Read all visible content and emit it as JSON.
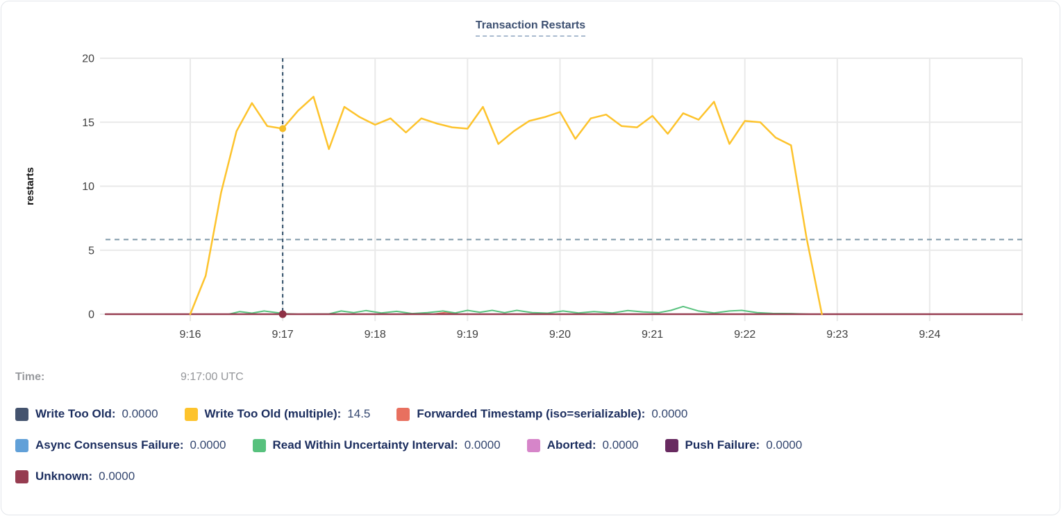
{
  "title": "Transaction Restarts",
  "hover": {
    "time_label": "Time:",
    "time_value": "9:17:00 UTC"
  },
  "chart_data": {
    "type": "line",
    "title": "Transaction Restarts",
    "ylabel": "restarts",
    "y_domain": [
      0,
      20
    ],
    "y_ticks": [
      0,
      5,
      10,
      15,
      20
    ],
    "x_domain": [
      5,
      600
    ],
    "x_ticks": [
      {
        "t": 60,
        "label": "9:16"
      },
      {
        "t": 120,
        "label": "9:17"
      },
      {
        "t": 180,
        "label": "9:18"
      },
      {
        "t": 240,
        "label": "9:19"
      },
      {
        "t": 300,
        "label": "9:20"
      },
      {
        "t": 360,
        "label": "9:21"
      },
      {
        "t": 420,
        "label": "9:22"
      },
      {
        "t": 480,
        "label": "9:23"
      },
      {
        "t": 540,
        "label": "9:24"
      },
      {
        "t": 600,
        "label": ""
      }
    ],
    "grid": true,
    "threshold_line": 5.83,
    "threshold_color": "#7e98a8",
    "crosshair_t": 120,
    "crosshair_color": "#2f4d68",
    "hover_dots": [
      {
        "series": "Write Too Old (multiple)",
        "t": 120,
        "v": 14.5,
        "r": 5,
        "color": "#f5bd27"
      },
      {
        "series": "Unknown",
        "t": 120,
        "v": 0,
        "r": 5.5,
        "color": "#8e3145"
      }
    ],
    "legend_rows": [
      [
        0,
        1,
        2
      ],
      [
        3,
        4,
        5,
        6
      ],
      [
        7
      ]
    ],
    "series": [
      {
        "id": "write-too-old",
        "name": "Write Too Old",
        "legend_value": "0.0000",
        "color": "#44536e",
        "z": 1,
        "width": 2,
        "points": [
          [
            5,
            0
          ],
          [
            600,
            0
          ]
        ]
      },
      {
        "id": "write-too-old-multiple",
        "name": "Write Too Old (multiple)",
        "legend_value": "14.5",
        "color": "#fdc32c",
        "z": 8,
        "width": 2.5,
        "points": [
          [
            60,
            0
          ],
          [
            70,
            3
          ],
          [
            80,
            9.5
          ],
          [
            90,
            14.3
          ],
          [
            100,
            16.5
          ],
          [
            110,
            14.7
          ],
          [
            120,
            14.5
          ],
          [
            130,
            15.9
          ],
          [
            140,
            17.0
          ],
          [
            150,
            12.9
          ],
          [
            160,
            16.2
          ],
          [
            170,
            15.4
          ],
          [
            180,
            14.8
          ],
          [
            190,
            15.3
          ],
          [
            200,
            14.2
          ],
          [
            210,
            15.3
          ],
          [
            220,
            14.9
          ],
          [
            230,
            14.6
          ],
          [
            240,
            14.5
          ],
          [
            250,
            16.2
          ],
          [
            260,
            13.3
          ],
          [
            270,
            14.3
          ],
          [
            280,
            15.1
          ],
          [
            290,
            15.4
          ],
          [
            300,
            15.8
          ],
          [
            310,
            13.7
          ],
          [
            320,
            15.3
          ],
          [
            330,
            15.6
          ],
          [
            340,
            14.7
          ],
          [
            350,
            14.6
          ],
          [
            360,
            15.5
          ],
          [
            370,
            14.1
          ],
          [
            380,
            15.7
          ],
          [
            390,
            15.2
          ],
          [
            400,
            16.6
          ],
          [
            410,
            13.3
          ],
          [
            420,
            15.1
          ],
          [
            430,
            15.0
          ],
          [
            440,
            13.8
          ],
          [
            450,
            13.2
          ],
          [
            460,
            6.0
          ],
          [
            470,
            0
          ]
        ]
      },
      {
        "id": "forwarded-timestamp",
        "name": "Forwarded Timestamp (iso=serializable)",
        "legend_value": "0.0000",
        "color": "#e8705f",
        "z": 2,
        "width": 2,
        "points": [
          [
            5,
            0
          ],
          [
            218,
            0
          ],
          [
            226,
            0.14
          ],
          [
            234,
            0
          ],
          [
            600,
            0
          ]
        ]
      },
      {
        "id": "async-consensus-failure",
        "name": "Async Consensus Failure",
        "legend_value": "0.0000",
        "color": "#61a0d8",
        "z": 3,
        "width": 2,
        "points": [
          [
            5,
            0
          ],
          [
            600,
            0
          ]
        ]
      },
      {
        "id": "read-within-uncertainty-interval",
        "name": "Read Within Uncertainty Interval",
        "legend_value": "0.0000",
        "color": "#57c17d",
        "z": 6,
        "width": 2,
        "points": [
          [
            85,
            0
          ],
          [
            92,
            0.2
          ],
          [
            100,
            0.08
          ],
          [
            108,
            0.25
          ],
          [
            116,
            0.12
          ],
          [
            122,
            0.04
          ],
          [
            130,
            0
          ],
          [
            150,
            0.02
          ],
          [
            158,
            0.25
          ],
          [
            166,
            0.12
          ],
          [
            174,
            0.28
          ],
          [
            184,
            0.1
          ],
          [
            194,
            0.22
          ],
          [
            204,
            0.05
          ],
          [
            214,
            0.12
          ],
          [
            224,
            0.25
          ],
          [
            232,
            0.1
          ],
          [
            240,
            0.3
          ],
          [
            248,
            0.15
          ],
          [
            256,
            0.3
          ],
          [
            264,
            0.12
          ],
          [
            272,
            0.3
          ],
          [
            282,
            0.12
          ],
          [
            292,
            0.08
          ],
          [
            302,
            0.25
          ],
          [
            312,
            0.1
          ],
          [
            322,
            0.2
          ],
          [
            334,
            0.1
          ],
          [
            344,
            0.28
          ],
          [
            354,
            0.18
          ],
          [
            364,
            0.12
          ],
          [
            372,
            0.3
          ],
          [
            380,
            0.6
          ],
          [
            390,
            0.25
          ],
          [
            400,
            0.1
          ],
          [
            410,
            0.25
          ],
          [
            418,
            0.3
          ],
          [
            428,
            0.12
          ],
          [
            438,
            0.06
          ],
          [
            450,
            0.05
          ],
          [
            462,
            0
          ]
        ]
      },
      {
        "id": "aborted",
        "name": "Aborted",
        "legend_value": "0.0000",
        "color": "#d685c9",
        "z": 4,
        "width": 2,
        "points": [
          [
            5,
            0
          ],
          [
            600,
            0
          ]
        ]
      },
      {
        "id": "push-failure",
        "name": "Push Failure",
        "legend_value": "0.0000",
        "color": "#682a60",
        "z": 5,
        "width": 2,
        "points": [
          [
            5,
            0
          ],
          [
            600,
            0
          ]
        ]
      },
      {
        "id": "unknown",
        "name": "Unknown",
        "legend_value": "0.0000",
        "color": "#963c50",
        "z": 7,
        "width": 2.5,
        "points": [
          [
            5,
            0
          ],
          [
            600,
            0
          ]
        ]
      }
    ]
  }
}
